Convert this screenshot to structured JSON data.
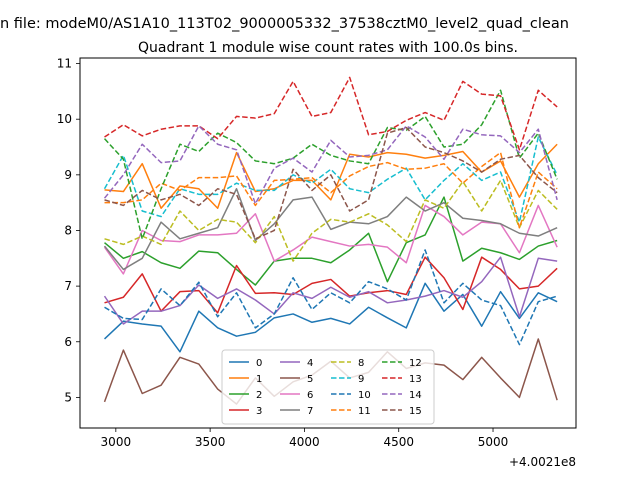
{
  "figure": {
    "suptitle": "n file: modeM0/AS1A10_113T02_9000005332_37538cztM0_level2_quad_clean",
    "title": "Quadrant 1 module wise count rates with 100.0s bins.",
    "offset_label": "+4.0021e8"
  },
  "chart_data": {
    "type": "line",
    "title": "Quadrant 1 module wise count rates with 100.0s bins.",
    "xlabel": "",
    "ylabel": "",
    "x_offset": 400210000,
    "xlim": [
      2810,
      5440
    ],
    "ylim": [
      4.45,
      11.1
    ],
    "xticks": [
      3000,
      3500,
      4000,
      4500,
      5000
    ],
    "yticks": [
      5,
      6,
      7,
      8,
      9,
      10,
      11
    ],
    "grid": false,
    "legend": {
      "placement": "lower-center",
      "columns": 4
    },
    "x": [
      2940,
      3040,
      3140,
      3240,
      3340,
      3440,
      3540,
      3640,
      3740,
      3840,
      3940,
      4040,
      4140,
      4240,
      4340,
      4440,
      4540,
      4640,
      4740,
      4840,
      4940,
      5040,
      5140,
      5240,
      5340
    ],
    "series": [
      {
        "name": "0",
        "color": "#1f77b4",
        "dash": "solid",
        "values": [
          6.05,
          6.37,
          6.32,
          6.28,
          5.82,
          6.55,
          6.25,
          6.1,
          6.17,
          6.43,
          6.5,
          6.35,
          6.42,
          6.32,
          6.62,
          6.43,
          6.25,
          7.05,
          6.55,
          6.85,
          6.28,
          6.9,
          6.42,
          6.88,
          6.72
        ]
      },
      {
        "name": "1",
        "color": "#ff7f0e",
        "dash": "solid",
        "values": [
          8.73,
          8.7,
          9.2,
          8.4,
          8.8,
          8.75,
          8.4,
          9.4,
          8.7,
          8.75,
          8.9,
          8.9,
          8.55,
          9.37,
          9.32,
          9.4,
          9.37,
          9.3,
          9.35,
          9.42,
          9.05,
          9.25,
          8.6,
          9.2,
          9.55
        ]
      },
      {
        "name": "2",
        "color": "#2ca02c",
        "dash": "solid",
        "values": [
          7.78,
          7.5,
          7.62,
          7.42,
          7.32,
          7.63,
          7.6,
          7.3,
          7.02,
          7.45,
          7.5,
          7.5,
          7.42,
          7.65,
          7.95,
          7.08,
          7.78,
          7.92,
          8.6,
          7.45,
          7.68,
          7.6,
          7.48,
          7.72,
          7.82
        ]
      },
      {
        "name": "3",
        "color": "#d62728",
        "dash": "solid",
        "values": [
          6.7,
          6.8,
          7.22,
          6.55,
          6.9,
          6.92,
          6.52,
          7.37,
          6.87,
          6.88,
          6.85,
          7.05,
          7.12,
          6.82,
          6.88,
          6.92,
          6.85,
          7.52,
          7.15,
          6.58,
          7.52,
          7.3,
          6.95,
          7.0,
          7.32
        ]
      },
      {
        "name": "4",
        "color": "#9467bd",
        "dash": "solid",
        "values": [
          6.82,
          6.32,
          6.55,
          6.55,
          6.65,
          7.02,
          6.78,
          6.95,
          6.75,
          6.5,
          6.88,
          6.78,
          6.98,
          6.8,
          6.9,
          6.7,
          6.75,
          6.82,
          6.92,
          6.8,
          7.08,
          7.52,
          6.45,
          7.5,
          7.45
        ]
      },
      {
        "name": "5",
        "color": "#8c564b",
        "dash": "solid",
        "values": [
          4.92,
          5.85,
          5.07,
          5.22,
          5.72,
          5.6,
          5.15,
          4.88,
          5.35,
          5.02,
          5.28,
          5.4,
          5.65,
          5.35,
          5.45,
          5.82,
          5.52,
          5.62,
          5.58,
          5.32,
          5.72,
          5.35,
          5.0,
          6.05,
          4.95
        ]
      },
      {
        "name": "6",
        "color": "#e377c2",
        "dash": "solid",
        "values": [
          7.7,
          7.22,
          8.0,
          7.82,
          7.8,
          7.92,
          7.92,
          7.95,
          8.3,
          7.45,
          7.65,
          7.88,
          7.8,
          7.72,
          7.75,
          7.7,
          7.42,
          8.45,
          8.25,
          7.92,
          8.15,
          8.12,
          7.6,
          8.45,
          7.7
        ]
      },
      {
        "name": "7",
        "color": "#7f7f7f",
        "dash": "solid",
        "values": [
          7.72,
          7.3,
          7.5,
          8.15,
          7.85,
          7.95,
          8.05,
          8.75,
          7.82,
          8.12,
          8.55,
          8.6,
          8.02,
          8.15,
          8.12,
          8.25,
          8.6,
          8.35,
          8.5,
          8.22,
          8.18,
          8.12,
          7.95,
          7.9,
          8.05
        ]
      },
      {
        "name": "8",
        "color": "#bcbd22",
        "dash": "dashed",
        "values": [
          7.85,
          7.75,
          7.9,
          7.75,
          8.35,
          8.0,
          8.2,
          8.15,
          7.78,
          8.25,
          7.45,
          7.95,
          8.2,
          8.15,
          8.3,
          8.1,
          7.8,
          8.55,
          8.4,
          8.88,
          8.35,
          8.9,
          8.05,
          8.72,
          8.38
        ]
      },
      {
        "name": "9",
        "color": "#17becf",
        "dash": "dashed",
        "values": [
          8.75,
          9.35,
          8.35,
          8.25,
          8.75,
          8.65,
          8.65,
          8.85,
          8.72,
          8.72,
          9.0,
          8.85,
          9.1,
          8.75,
          8.68,
          8.92,
          9.12,
          8.55,
          8.9,
          9.2,
          8.9,
          9.05,
          8.15,
          9.68,
          9.0
        ]
      },
      {
        "name": "10",
        "color": "#1f77b4",
        "dash": "dashed",
        "values": [
          6.62,
          6.42,
          6.4,
          6.95,
          6.65,
          7.07,
          6.45,
          6.88,
          6.25,
          6.5,
          7.15,
          6.58,
          6.88,
          6.7,
          7.08,
          6.95,
          6.75,
          7.65,
          6.7,
          7.05,
          6.75,
          6.65,
          5.95,
          6.72,
          6.82
        ]
      },
      {
        "name": "11",
        "color": "#ff7f0e",
        "dash": "dashed",
        "values": [
          8.5,
          8.5,
          8.55,
          8.85,
          8.72,
          8.95,
          8.95,
          8.98,
          8.45,
          8.9,
          8.92,
          8.95,
          8.68,
          8.98,
          9.15,
          9.22,
          9.1,
          9.12,
          9.2,
          8.85,
          9.15,
          9.4,
          8.05,
          9.05,
          8.75
        ]
      },
      {
        "name": "12",
        "color": "#2ca02c",
        "dash": "dashed",
        "values": [
          9.65,
          9.28,
          7.85,
          8.75,
          9.55,
          9.42,
          9.75,
          9.58,
          9.25,
          9.2,
          9.3,
          9.55,
          9.35,
          9.25,
          9.2,
          9.85,
          9.8,
          10.05,
          9.5,
          9.55,
          9.9,
          10.52,
          9.3,
          9.75,
          8.92
        ]
      },
      {
        "name": "13",
        "color": "#d62728",
        "dash": "dashed",
        "values": [
          9.68,
          9.9,
          9.7,
          9.82,
          9.88,
          9.88,
          9.65,
          10.05,
          10.02,
          10.1,
          10.68,
          10.05,
          10.12,
          10.75,
          9.72,
          9.78,
          9.98,
          10.12,
          9.98,
          10.68,
          10.45,
          10.42,
          9.45,
          10.52,
          10.22
        ]
      },
      {
        "name": "14",
        "color": "#9467bd",
        "dash": "dashed",
        "values": [
          8.58,
          9.0,
          9.55,
          9.22,
          9.25,
          9.88,
          9.55,
          9.45,
          8.48,
          9.12,
          9.3,
          9.05,
          9.62,
          9.32,
          9.35,
          9.45,
          9.88,
          9.68,
          9.28,
          9.82,
          9.72,
          9.7,
          9.4,
          9.82,
          8.55
        ]
      },
      {
        "name": "15",
        "color": "#8c564b",
        "dash": "dashed",
        "values": [
          8.55,
          8.45,
          8.72,
          8.55,
          8.65,
          8.45,
          8.75,
          8.65,
          7.85,
          8.0,
          9.1,
          8.72,
          9.0,
          8.35,
          8.55,
          9.75,
          9.85,
          9.5,
          9.4,
          9.25,
          9.05,
          9.28,
          9.35,
          8.95,
          8.68
        ]
      }
    ]
  }
}
